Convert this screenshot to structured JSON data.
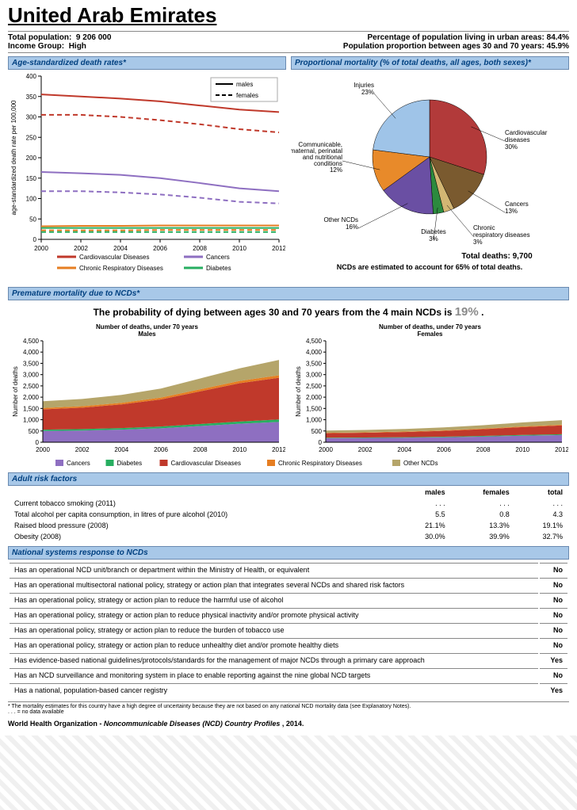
{
  "title": "United Arab Emirates",
  "meta": {
    "pop_label": "Total population:",
    "pop_value": "9 206 000",
    "income_label": "Income Group:",
    "income_value": "High",
    "urban_label": "Percentage of population living in urban areas:",
    "urban_value": "84.4%",
    "agerange_label": "Population proportion between ages 30 and 70 years:",
    "agerange_value": "45.9%"
  },
  "headers": {
    "death_rates": "Age-standardized death rates*",
    "prop_mortality": "Proportional mortality (% of total deaths, all ages, both sexes)*",
    "premature": "Premature mortality due to NCDs*",
    "risk": "Adult risk factors",
    "nsr": "National systems response to NCDs"
  },
  "line_chart": {
    "type": "line",
    "xlim": [
      2000,
      2012
    ],
    "xtick_step": 2,
    "ylim": [
      0,
      400
    ],
    "ytick_step": 50,
    "ylabel": "age-standardized death rate per 100,000",
    "background_color": "#ffffff",
    "gridline_color": "#cccccc",
    "legend_box": {
      "males": "males",
      "females": "females",
      "solid": "solid",
      "dashed": "dashed"
    },
    "series": [
      {
        "name": "Cardiovascular Diseases",
        "color": "#c0392b",
        "males": [
          355,
          350,
          345,
          338,
          328,
          318,
          312
        ],
        "females": [
          305,
          305,
          300,
          292,
          282,
          270,
          262
        ]
      },
      {
        "name": "Cancers",
        "color": "#8e6fc1",
        "males": [
          165,
          162,
          158,
          150,
          138,
          125,
          118
        ],
        "females": [
          118,
          118,
          115,
          110,
          102,
          92,
          88
        ]
      },
      {
        "name": "Chronic Respiratory Diseases",
        "color": "#e67e22",
        "males": [
          32,
          33,
          33,
          34,
          34,
          34,
          34
        ],
        "females": [
          22,
          22,
          22,
          23,
          23,
          23,
          23
        ]
      },
      {
        "name": "Diabetes",
        "color": "#27ae60",
        "males": [
          28,
          28,
          28,
          28,
          28,
          28,
          28
        ],
        "females": [
          18,
          18,
          18,
          18,
          18,
          18,
          18
        ]
      }
    ],
    "legend_items": [
      {
        "label": "Cardiovascular Diseases",
        "color": "#c0392b"
      },
      {
        "label": "Cancers",
        "color": "#8e6fc1"
      },
      {
        "label": "Chronic Respiratory Diseases",
        "color": "#e67e22"
      },
      {
        "label": "Diabetes",
        "color": "#27ae60"
      }
    ]
  },
  "pie": {
    "type": "pie",
    "background_color": "#ffffff",
    "stroke": "#000000",
    "slices": [
      {
        "label": "Cardiovascular diseases",
        "pct": 30,
        "color": "#b23a3a"
      },
      {
        "label": "Cancers",
        "pct": 13,
        "color": "#7a5a2f"
      },
      {
        "label": "Chronic respiratory diseases",
        "pct": 3,
        "color": "#d3b673"
      },
      {
        "label": "Diabetes",
        "pct": 3,
        "color": "#2c8a3e"
      },
      {
        "label": "Other NCDs",
        "pct": 16,
        "color": "#6a4fa3"
      },
      {
        "label": "Communicable, maternal, perinatal and nutritional conditions",
        "pct": 12,
        "color": "#e88a2a"
      },
      {
        "label": "Injuries",
        "pct": 23,
        "color": "#9fc4e8"
      }
    ],
    "total_deaths_label": "Total deaths:",
    "total_deaths_value": "9,700",
    "ncd_line": "NCDs are estimated to account for 65% of total deaths."
  },
  "premature": {
    "summary_pre": "The probability of dying between ages 30 and 70 years from the 4 main NCDs is ",
    "summary_prob": "19%",
    "summary_post": " .",
    "charts": {
      "type": "area",
      "titles": {
        "males": "Number of deaths, under 70 years\nMales",
        "females": "Number of deaths, under 70 years\nFemales"
      },
      "xlim": [
        2000,
        2012
      ],
      "xtick_step": 2,
      "ylim": [
        0,
        4500
      ],
      "ytick_step": 500,
      "ylabel": "Number of deaths",
      "colors": {
        "Cancers": "#8e6fc1",
        "Diabetes": "#27ae60",
        "Cardiovascular Diseases": "#c0392b",
        "Chronic Respiratory Diseases": "#e67e22",
        "Other NCDs": "#b5a56a"
      },
      "males": {
        "x": [
          2000,
          2002,
          2004,
          2006,
          2008,
          2010,
          2012
        ],
        "stack": [
          {
            "name": "Cancers",
            "vals": [
              500,
              520,
              560,
              620,
              720,
              820,
              900
            ]
          },
          {
            "name": "Diabetes",
            "vals": [
              60,
              65,
              70,
              80,
              90,
              100,
              110
            ]
          },
          {
            "name": "Cardiovascular Diseases",
            "vals": [
              900,
              950,
              1050,
              1200,
              1450,
              1700,
              1850
            ]
          },
          {
            "name": "Chronic Respiratory Diseases",
            "vals": [
              60,
              65,
              70,
              80,
              90,
              100,
              110
            ]
          },
          {
            "name": "Other NCDs",
            "vals": [
              300,
              320,
              350,
              400,
              480,
              560,
              680
            ]
          }
        ]
      },
      "females": {
        "x": [
          2000,
          2002,
          2004,
          2006,
          2008,
          2010,
          2012
        ],
        "stack": [
          {
            "name": "Cancers",
            "vals": [
              180,
              190,
              200,
              220,
              250,
              290,
              320
            ]
          },
          {
            "name": "Diabetes",
            "vals": [
              20,
              22,
              24,
              26,
              30,
              34,
              38
            ]
          },
          {
            "name": "Cardiovascular Diseases",
            "vals": [
              200,
              210,
              230,
              260,
              300,
              350,
              390
            ]
          },
          {
            "name": "Chronic Respiratory Diseases",
            "vals": [
              18,
              19,
              20,
              22,
              25,
              28,
              30
            ]
          },
          {
            "name": "Other NCDs",
            "vals": [
              100,
              105,
              115,
              130,
              150,
              175,
              200
            ]
          }
        ]
      },
      "legend": [
        "Cancers",
        "Diabetes",
        "Cardiovascular Diseases",
        "Chronic Respiratory Diseases",
        "Other NCDs"
      ]
    }
  },
  "risk": {
    "cols": [
      "",
      "males",
      "females",
      "total"
    ],
    "rows": [
      [
        "Current tobacco smoking (2011)",
        ". . .",
        ". . .",
        ". . ."
      ],
      [
        "Total alcohol per capita consumption, in litres of pure alcohol (2010)",
        "5.5",
        "0.8",
        "4.3"
      ],
      [
        "Raised blood pressure (2008)",
        "21.1%",
        "13.3%",
        "19.1%"
      ],
      [
        "Obesity (2008)",
        "30.0%",
        "39.9%",
        "32.7%"
      ]
    ]
  },
  "nsr": {
    "rows": [
      [
        "Has an operational NCD unit/branch or department within the Ministry of Health, or equivalent",
        "No"
      ],
      [
        "Has an operational multisectoral national policy, strategy or action plan that integrates several NCDs and shared risk factors",
        "No"
      ],
      [
        "Has an operational policy, strategy or action plan to reduce the harmful use of alcohol",
        "No"
      ],
      [
        "Has an operational policy, strategy or action plan to reduce physical inactivity and/or promote physical activity",
        "No"
      ],
      [
        "Has an operational policy, strategy or action plan to reduce the burden of tobacco use",
        "No"
      ],
      [
        "Has an operational policy, strategy or action plan to reduce unhealthy diet and/or promote healthy diets",
        "No"
      ],
      [
        "Has evidence-based national guidelines/protocols/standards for the management of major NCDs through a primary care approach",
        "Yes"
      ],
      [
        "Has an NCD surveillance and monitoring system in place to enable reporting against the nine global NCD targets",
        "No"
      ],
      [
        "Has a national, population-based cancer registry",
        "Yes"
      ]
    ]
  },
  "footnote": {
    "line1": "* The mortality estimates for this country have a high degree of uncertainty because they are not based on any national NCD mortality data (see Explanatory Notes).",
    "line2": ". . . = no data available"
  },
  "footer": {
    "org": "World Health Organization - ",
    "title": "Noncommunicable Diseases (NCD) Country Profiles ",
    "year": ", 2014."
  }
}
